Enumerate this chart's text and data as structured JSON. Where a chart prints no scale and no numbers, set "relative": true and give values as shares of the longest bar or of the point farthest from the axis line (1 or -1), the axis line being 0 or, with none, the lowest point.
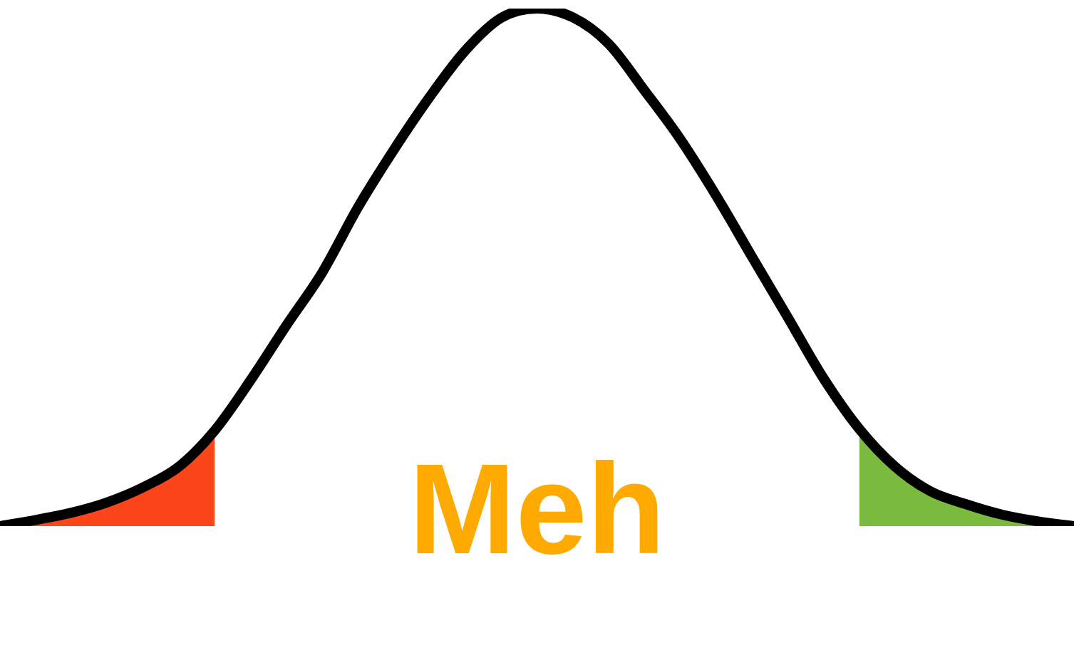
{
  "chart_data": {
    "type": "line",
    "relative": true,
    "legend": false,
    "grid": false,
    "marker": "none",
    "categories": [
      null,
      null,
      null,
      null,
      null,
      null,
      null,
      null,
      null,
      null,
      null,
      null,
      null,
      null,
      null,
      null,
      null,
      null,
      null,
      null,
      null,
      null,
      null,
      null,
      null,
      null,
      null,
      null,
      null,
      null,
      null
    ],
    "series": [
      {
        "type": "area",
        "color": "#fc4619",
        "values": [
          0,
          0.012,
          0.026,
          0.046,
          0.075,
          0.115,
          0.185,
          null,
          null,
          null,
          null,
          null,
          null,
          null,
          null,
          null,
          null,
          null,
          null,
          null,
          null,
          null,
          null,
          null,
          null,
          null,
          null,
          null,
          null,
          null,
          null
        ]
      },
      {
        "type": "area",
        "color": "#7aba3e",
        "values": [
          null,
          null,
          null,
          null,
          null,
          null,
          null,
          null,
          null,
          null,
          null,
          null,
          null,
          null,
          null,
          null,
          null,
          null,
          null,
          null,
          null,
          null,
          null,
          null,
          0.188,
          0.115,
          0.067,
          0.042,
          0.022,
          0.009,
          0
        ]
      },
      {
        "color": "#000000",
        "values": [
          0,
          0.012,
          0.026,
          0.046,
          0.075,
          0.115,
          0.185,
          0.282,
          0.388,
          0.49,
          0.616,
          0.727,
          0.829,
          0.919,
          0.982,
          1,
          0.983,
          0.932,
          0.842,
          0.748,
          0.639,
          0.521,
          0.404,
          0.286,
          0.188,
          0.115,
          0.067,
          0.042,
          0.022,
          0.009,
          0
        ]
      }
    ],
    "annotations": [
      "Meh"
    ]
  }
}
